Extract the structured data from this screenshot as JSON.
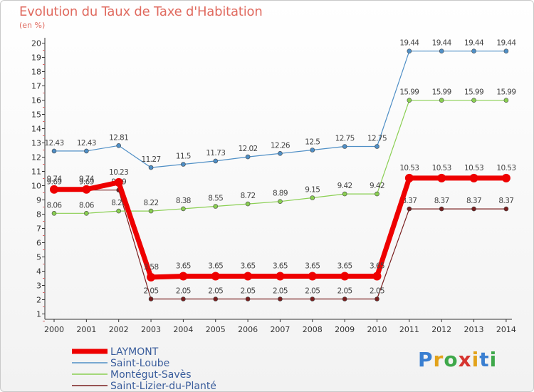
{
  "header": {
    "title": "Evolution du Taux de Taxe d'Habitation",
    "subtitle": "(en %)"
  },
  "logo": {
    "text": "Proxiti"
  },
  "chart_data": {
    "type": "line",
    "title": "Evolution du Taux de Taxe d'Habitation",
    "ylabel": "(en %)",
    "xlabel": "",
    "ylim": [
      1,
      20
    ],
    "grid": false,
    "legend_position": "bottom-left",
    "x": [
      "2000",
      "2001",
      "2002",
      "2003",
      "2004",
      "2005",
      "2006",
      "2007",
      "2008",
      "2009",
      "2010",
      "2011",
      "2012",
      "2013",
      "2014"
    ],
    "yticks": [
      "1",
      "2",
      "3",
      "4",
      "5",
      "6",
      "7",
      "8",
      "9",
      "10",
      "11",
      "12",
      "13",
      "14",
      "15",
      "16",
      "17",
      "18",
      "19",
      "20"
    ],
    "series": [
      {
        "name": "LAYMONT",
        "color": "#ee0000",
        "values": [
          9.74,
          9.74,
          10.23,
          3.58,
          3.65,
          3.65,
          3.65,
          3.65,
          3.65,
          3.65,
          3.65,
          10.53,
          10.53,
          10.53,
          10.53
        ],
        "labels": [
          "9.74",
          "9.74",
          "10.23",
          "3.58",
          "3.65",
          "3.65",
          "3.65",
          "3.65",
          "3.65",
          "3.65",
          "3.65",
          "10.53",
          "10.53",
          "10.53",
          "10.53"
        ]
      },
      {
        "name": "Saint-Loube",
        "color": "#4f8fc6",
        "values": [
          12.43,
          12.43,
          12.81,
          11.27,
          11.5,
          11.73,
          12.02,
          12.26,
          12.5,
          12.75,
          12.75,
          19.44,
          19.44,
          19.44,
          19.44
        ],
        "labels": [
          "12.43",
          "12.43",
          "12.81",
          "11.27",
          "11.5",
          "11.73",
          "12.02",
          "12.26",
          "12.5",
          "12.75",
          "12.75",
          "19.44",
          "19.44",
          "19.44",
          "19.44"
        ]
      },
      {
        "name": "Montégut-Savès",
        "color": "#8acf52",
        "values": [
          8.06,
          8.06,
          8.22,
          8.22,
          8.38,
          8.55,
          8.72,
          8.89,
          9.15,
          9.42,
          9.42,
          15.99,
          15.99,
          15.99,
          15.99
        ],
        "labels": [
          "8.06",
          "8.06",
          "8.22",
          "8.22",
          "8.38",
          "8.55",
          "8.72",
          "8.89",
          "9.15",
          "9.42",
          "9.42",
          "15.99",
          "15.99",
          "15.99",
          "15.99"
        ]
      },
      {
        "name": "Saint-Lizier-du-Planté",
        "color": "#7a1f1f",
        "values": [
          9.69,
          9.69,
          9.69,
          2.05,
          2.05,
          2.05,
          2.05,
          2.05,
          2.05,
          2.05,
          2.05,
          8.37,
          8.37,
          8.37,
          8.37
        ],
        "labels": [
          "9.69",
          "9.69",
          "9.69",
          "2.05",
          "2.05",
          "2.05",
          "2.05",
          "2.05",
          "2.05",
          "2.05",
          "2.05",
          "8.37",
          "8.37",
          "8.37",
          "8.37"
        ]
      }
    ]
  }
}
